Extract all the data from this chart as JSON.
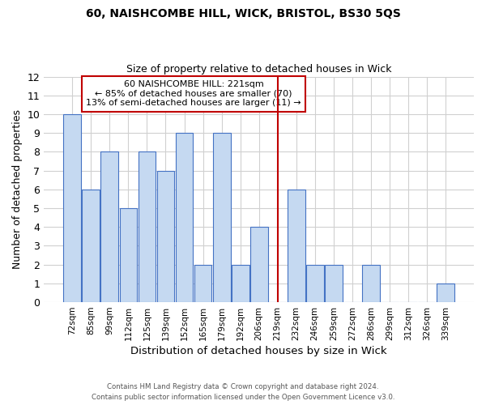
{
  "title1": "60, NAISHCOMBE HILL, WICK, BRISTOL, BS30 5QS",
  "title2": "Size of property relative to detached houses in Wick",
  "xlabel": "Distribution of detached houses by size in Wick",
  "ylabel": "Number of detached properties",
  "bar_labels": [
    "72sqm",
    "85sqm",
    "99sqm",
    "112sqm",
    "125sqm",
    "139sqm",
    "152sqm",
    "165sqm",
    "179sqm",
    "192sqm",
    "206sqm",
    "219sqm",
    "232sqm",
    "246sqm",
    "259sqm",
    "272sqm",
    "286sqm",
    "299sqm",
    "312sqm",
    "326sqm",
    "339sqm"
  ],
  "bar_values": [
    10,
    6,
    8,
    5,
    8,
    7,
    9,
    2,
    9,
    2,
    4,
    0,
    6,
    2,
    2,
    0,
    2,
    0,
    0,
    0,
    1
  ],
  "bar_color": "#c5d9f1",
  "bar_edge_color": "#4472c4",
  "vline_x": 11.0,
  "highlight_line_color": "#c00000",
  "annotation_title": "60 NAISHCOMBE HILL: 221sqm",
  "annotation_line1": "← 85% of detached houses are smaller (70)",
  "annotation_line2": "13% of semi-detached houses are larger (11) →",
  "annotation_box_color": "#ffffff",
  "annotation_box_edge": "#c00000",
  "ylim": [
    0,
    12
  ],
  "yticks": [
    0,
    1,
    2,
    3,
    4,
    5,
    6,
    7,
    8,
    9,
    10,
    11,
    12
  ],
  "footer1": "Contains HM Land Registry data © Crown copyright and database right 2024.",
  "footer2": "Contains public sector information licensed under the Open Government Licence v3.0.",
  "bg_color": "#ffffff",
  "grid_color": "#d0d0d0"
}
